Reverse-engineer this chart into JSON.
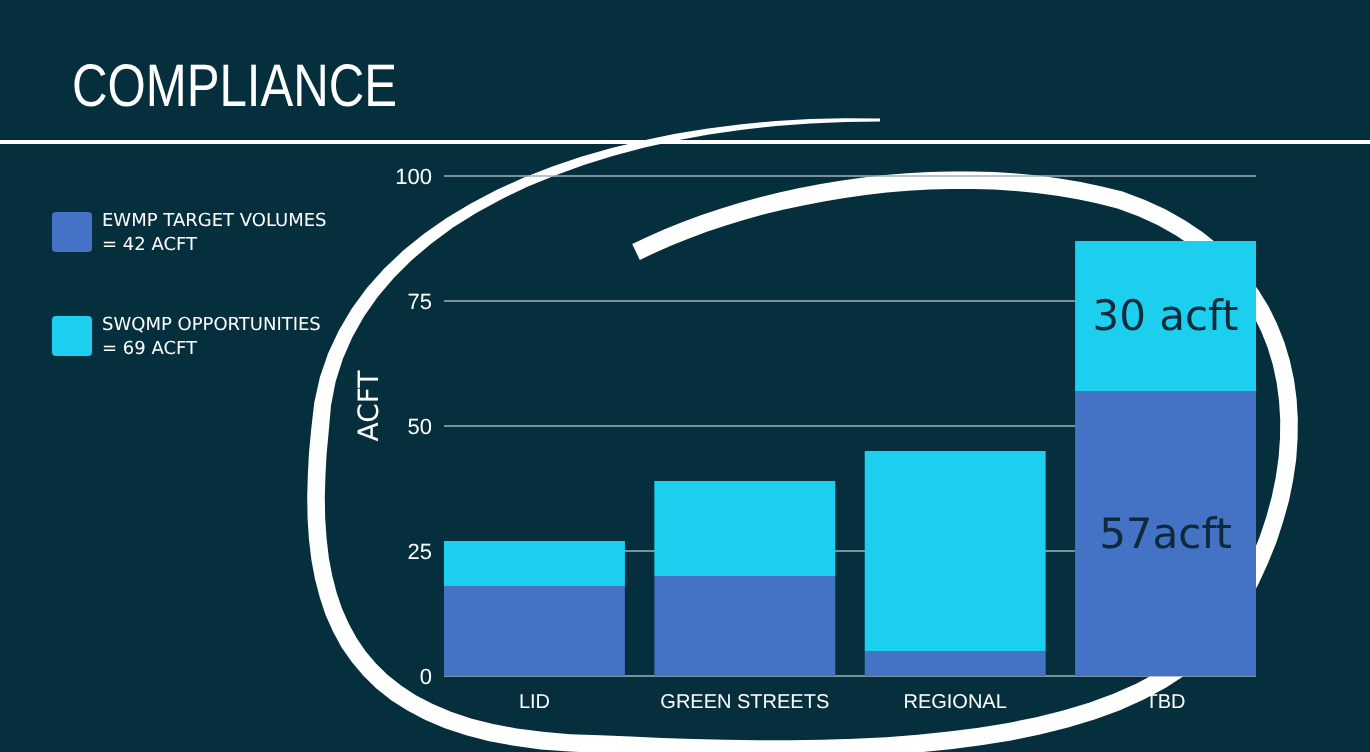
{
  "chart_data": {
    "type": "bar",
    "title": "COMPLIANCE",
    "ylabel": "ACFT",
    "categories": [
      "LID",
      "GREEN STREETS",
      "REGIONAL",
      "TBD"
    ],
    "stacked": true,
    "series": [
      {
        "name": "EWMP TARGET VOLUMES = 42 ACFT",
        "color": "#4472c4",
        "values": [
          18,
          20,
          5,
          57
        ],
        "value_labels": [
          null,
          null,
          null,
          "57acft"
        ]
      },
      {
        "name": "SWQMP OPPORTUNITIES = 69 ACFT",
        "color": "#1ccfee",
        "values": [
          9,
          19,
          40,
          30
        ],
        "value_labels": [
          null,
          null,
          null,
          "30 acft"
        ]
      }
    ],
    "ylim": [
      0,
      100
    ],
    "yticks": [
      0,
      25,
      50,
      75,
      100
    ],
    "grid": "y",
    "legend": "left"
  }
}
